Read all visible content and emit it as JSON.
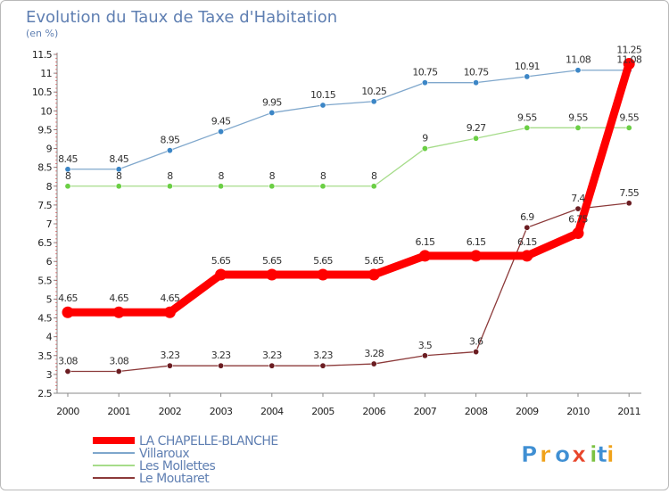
{
  "chart_data": {
    "type": "line",
    "title": "Evolution du Taux de Taxe d'Habitation",
    "subtitle": "(en %)",
    "x": [
      "2000",
      "2001",
      "2002",
      "2003",
      "2004",
      "2005",
      "2006",
      "2007",
      "2008",
      "2009",
      "2010",
      "2011"
    ],
    "ylim": [
      2.5,
      11.5
    ],
    "yticks": [
      "2.5",
      "3",
      "3.5",
      "4",
      "4.5",
      "5",
      "5.5",
      "6",
      "6.5",
      "7",
      "7.5",
      "8",
      "8.5",
      "9",
      "9.5",
      "10",
      "10.5",
      "11",
      "11.5"
    ],
    "grid": false,
    "legend_position": "bottom-left",
    "series": [
      {
        "name": "Villaroux",
        "color": "#7fa7cc",
        "marker": "#3c86c6",
        "values": [
          8.45,
          8.45,
          8.95,
          9.45,
          9.95,
          10.15,
          10.25,
          10.75,
          10.75,
          10.91,
          11.08,
          11.08
        ],
        "labels": [
          "8.45",
          "8.45",
          "8.95",
          "9.45",
          "9.95",
          "10.15",
          "10.25",
          "10.75",
          "10.75",
          "10.91",
          "11.08",
          "11.08"
        ]
      },
      {
        "name": "Les Mollettes",
        "color": "#a6dc8a",
        "marker": "#6bcf45",
        "values": [
          8,
          8,
          8,
          8,
          8,
          8,
          8,
          9,
          9.27,
          9.55,
          9.55,
          9.55
        ],
        "labels": [
          "8",
          "8",
          "8",
          "8",
          "8",
          "8",
          "8",
          "9",
          "9.27",
          "9.55",
          "9.55",
          "9.55"
        ]
      },
      {
        "name": "Le Moutaret",
        "color": "#8c3a3a",
        "marker": "#6b1d22",
        "values": [
          3.08,
          3.08,
          3.23,
          3.23,
          3.23,
          3.23,
          3.28,
          3.5,
          3.6,
          6.9,
          7.4,
          7.55
        ],
        "labels": [
          "3.08",
          "3.08",
          "3.23",
          "3.23",
          "3.23",
          "3.23",
          "3.28",
          "3.5",
          "3.6",
          "6.9",
          "7.4",
          "7.55"
        ]
      },
      {
        "name": "LA CHAPELLE-BLANCHE",
        "color": "#ff0000",
        "marker": "#ff0000",
        "values": [
          4.65,
          4.65,
          4.65,
          5.65,
          5.65,
          5.65,
          5.65,
          6.15,
          6.15,
          6.15,
          6.75,
          11.25
        ],
        "labels": [
          "4.65",
          "4.65",
          "4.65",
          "5.65",
          "5.65",
          "5.65",
          "5.65",
          "6.15",
          "6.15",
          "6.15",
          "6.75",
          "11.25"
        ]
      }
    ]
  },
  "legend": [
    {
      "name": "LA CHAPELLE-BLANCHE",
      "color": "#ff0000"
    },
    {
      "name": "Villaroux",
      "color": "#7fa7cc"
    },
    {
      "name": "Les Mollettes",
      "color": "#a6dc8a"
    },
    {
      "name": "Le Moutaret",
      "color": "#8c3a3a"
    }
  ],
  "brand": {
    "letters": [
      {
        "ch": "P",
        "color": "#3f8fd3"
      },
      {
        "ch": "r",
        "color": "#f0a21a"
      },
      {
        "ch": "o",
        "color": "#3f8fd3"
      },
      {
        "ch": "x",
        "color": "#e8452a"
      },
      {
        "ch": "i",
        "color": "#7cc242"
      },
      {
        "ch": "t",
        "color": "#3f8fd3"
      },
      {
        "ch": "i",
        "color": "#f0a21a"
      }
    ]
  }
}
